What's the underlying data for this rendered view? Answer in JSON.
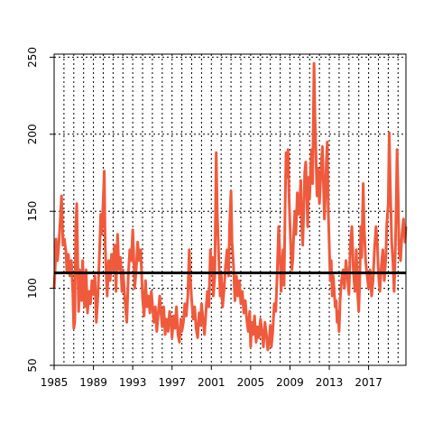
{
  "chart_data": {
    "type": "line",
    "title": "",
    "xlabel": "",
    "ylabel": "",
    "xlim": [
      1985,
      2020.8
    ],
    "ylim": [
      50,
      252
    ],
    "x_ticks": [
      1985,
      1989,
      1993,
      1997,
      2001,
      2005,
      2009,
      2013,
      2017
    ],
    "x_tick_labels": [
      "1985",
      "1989",
      "1993",
      "1997",
      "2001",
      "2005",
      "2009",
      "2013",
      "2017"
    ],
    "y_ticks": [
      50,
      100,
      150,
      200,
      250
    ],
    "y_tick_labels": [
      "50",
      "100",
      "150",
      "200",
      "250"
    ],
    "grid": true,
    "vertical_grid_step_years": 1,
    "series": [
      {
        "color": "#f05a3c",
        "line_width": 3,
        "points": [
          [
            1985.0,
            100
          ],
          [
            1985.1,
            112
          ],
          [
            1985.2,
            132
          ],
          [
            1985.35,
            118
          ],
          [
            1985.5,
            130
          ],
          [
            1985.65,
            148
          ],
          [
            1985.75,
            160
          ],
          [
            1985.9,
            128
          ],
          [
            1986.05,
            132
          ],
          [
            1986.2,
            124
          ],
          [
            1986.3,
            110
          ],
          [
            1986.45,
            122
          ],
          [
            1986.6,
            108
          ],
          [
            1986.75,
            118
          ],
          [
            1986.9,
            98
          ],
          [
            1987.0,
            74
          ],
          [
            1987.1,
            78
          ],
          [
            1987.2,
            140
          ],
          [
            1987.3,
            155
          ],
          [
            1987.4,
            120
          ],
          [
            1987.5,
            85
          ],
          [
            1987.6,
            112
          ],
          [
            1987.7,
            96
          ],
          [
            1987.8,
            92
          ],
          [
            1987.9,
            118
          ],
          [
            1988.0,
            102
          ],
          [
            1988.1,
            88
          ],
          [
            1988.25,
            112
          ],
          [
            1988.4,
            84
          ],
          [
            1988.55,
            98
          ],
          [
            1988.7,
            90
          ],
          [
            1988.85,
            105
          ],
          [
            1989.0,
            96
          ],
          [
            1989.15,
            108
          ],
          [
            1989.3,
            78
          ],
          [
            1989.45,
            95
          ],
          [
            1989.6,
            120
          ],
          [
            1989.75,
            148
          ],
          [
            1989.85,
            135
          ],
          [
            1990.0,
            158
          ],
          [
            1990.1,
            176
          ],
          [
            1990.2,
            128
          ],
          [
            1990.3,
            110
          ],
          [
            1990.4,
            95
          ],
          [
            1990.55,
            118
          ],
          [
            1990.7,
            105
          ],
          [
            1990.85,
            122
          ],
          [
            1991.0,
            112
          ],
          [
            1991.15,
            128
          ],
          [
            1991.3,
            98
          ],
          [
            1991.45,
            135
          ],
          [
            1991.6,
            112
          ],
          [
            1991.75,
            120
          ],
          [
            1991.9,
            98
          ],
          [
            1992.0,
            112
          ],
          [
            1992.15,
            98
          ],
          [
            1992.3,
            85
          ],
          [
            1992.4,
            78
          ],
          [
            1992.55,
            108
          ],
          [
            1992.7,
            125
          ],
          [
            1992.85,
            118
          ],
          [
            1993.0,
            138
          ],
          [
            1993.1,
            122
          ],
          [
            1993.2,
            100
          ],
          [
            1993.35,
            112
          ],
          [
            1993.5,
            130
          ],
          [
            1993.65,
            118
          ],
          [
            1993.8,
            125
          ],
          [
            1993.9,
            110
          ],
          [
            1994.0,
            94
          ],
          [
            1994.15,
            82
          ],
          [
            1994.3,
            105
          ],
          [
            1994.45,
            88
          ],
          [
            1994.6,
            95
          ],
          [
            1994.75,
            84
          ],
          [
            1994.9,
            98
          ],
          [
            1995.0,
            90
          ],
          [
            1995.15,
            78
          ],
          [
            1995.3,
            88
          ],
          [
            1995.45,
            72
          ],
          [
            1995.6,
            84
          ],
          [
            1995.75,
            95
          ],
          [
            1995.9,
            82
          ],
          [
            1996.0,
            75
          ],
          [
            1996.15,
            88
          ],
          [
            1996.3,
            70
          ],
          [
            1996.45,
            80
          ],
          [
            1996.6,
            72
          ],
          [
            1996.75,
            85
          ],
          [
            1996.9,
            78
          ],
          [
            1997.0,
            68
          ],
          [
            1997.15,
            82
          ],
          [
            1997.3,
            74
          ],
          [
            1997.45,
            88
          ],
          [
            1997.6,
            70
          ],
          [
            1997.75,
            65
          ],
          [
            1997.9,
            80
          ],
          [
            1998.0,
            72
          ],
          [
            1998.15,
            78
          ],
          [
            1998.3,
            90
          ],
          [
            1998.45,
            82
          ],
          [
            1998.6,
            95
          ],
          [
            1998.75,
            125
          ],
          [
            1998.85,
            108
          ],
          [
            1999.0,
            92
          ],
          [
            1999.15,
            80
          ],
          [
            1999.3,
            88
          ],
          [
            1999.45,
            74
          ],
          [
            1999.6,
            68
          ],
          [
            1999.75,
            84
          ],
          [
            1999.9,
            76
          ],
          [
            2000.0,
            90
          ],
          [
            2000.15,
            80
          ],
          [
            2000.3,
            70
          ],
          [
            2000.45,
            85
          ],
          [
            2000.6,
            98
          ],
          [
            2000.75,
            88
          ],
          [
            2000.9,
            125
          ],
          [
            2001.0,
            110
          ],
          [
            2001.1,
            120
          ],
          [
            2001.2,
            95
          ],
          [
            2001.35,
            108
          ],
          [
            2001.5,
            188
          ],
          [
            2001.6,
            150
          ],
          [
            2001.75,
            120
          ],
          [
            2001.9,
            95
          ],
          [
            2002.0,
            110
          ],
          [
            2002.15,
            88
          ],
          [
            2002.3,
            100
          ],
          [
            2002.45,
            115
          ],
          [
            2002.6,
            125
          ],
          [
            2002.75,
            108
          ],
          [
            2002.85,
            140
          ],
          [
            2003.0,
            163
          ],
          [
            2003.1,
            130
          ],
          [
            2003.25,
            115
          ],
          [
            2003.4,
            92
          ],
          [
            2003.55,
            108
          ],
          [
            2003.7,
            95
          ],
          [
            2003.85,
            105
          ],
          [
            2004.0,
            90
          ],
          [
            2004.15,
            98
          ],
          [
            2004.3,
            84
          ],
          [
            2004.45,
            92
          ],
          [
            2004.6,
            80
          ],
          [
            2004.75,
            72
          ],
          [
            2004.9,
            85
          ],
          [
            2005.0,
            62
          ],
          [
            2005.1,
            78
          ],
          [
            2005.25,
            70
          ],
          [
            2005.4,
            82
          ],
          [
            2005.55,
            65
          ],
          [
            2005.7,
            75
          ],
          [
            2005.85,
            68
          ],
          [
            2006.0,
            80
          ],
          [
            2006.15,
            72
          ],
          [
            2006.3,
            62
          ],
          [
            2006.45,
            78
          ],
          [
            2006.6,
            70
          ],
          [
            2006.75,
            60
          ],
          [
            2006.9,
            68
          ],
          [
            2007.0,
            76
          ],
          [
            2007.1,
            62
          ],
          [
            2007.25,
            72
          ],
          [
            2007.4,
            90
          ],
          [
            2007.55,
            85
          ],
          [
            2007.7,
            110
          ],
          [
            2007.85,
            140
          ],
          [
            2008.0,
            118
          ],
          [
            2008.1,
            98
          ],
          [
            2008.2,
            110
          ],
          [
            2008.3,
            125
          ],
          [
            2008.4,
            102
          ],
          [
            2008.5,
            150
          ],
          [
            2008.6,
            188
          ],
          [
            2008.7,
            172
          ],
          [
            2008.8,
            190
          ],
          [
            2008.9,
            160
          ],
          [
            2009.0,
            140
          ],
          [
            2009.1,
            125
          ],
          [
            2009.2,
            112
          ],
          [
            2009.3,
            120
          ],
          [
            2009.4,
            138
          ],
          [
            2009.5,
            150
          ],
          [
            2009.6,
            135
          ],
          [
            2009.75,
            162
          ],
          [
            2009.9,
            148
          ],
          [
            2010.0,
            155
          ],
          [
            2010.1,
            170
          ],
          [
            2010.2,
            140
          ],
          [
            2010.3,
            128
          ],
          [
            2010.4,
            150
          ],
          [
            2010.5,
            175
          ],
          [
            2010.6,
            182
          ],
          [
            2010.7,
            162
          ],
          [
            2010.8,
            140
          ],
          [
            2010.9,
            172
          ],
          [
            2011.0,
            158
          ],
          [
            2011.1,
            178
          ],
          [
            2011.2,
            190
          ],
          [
            2011.3,
            168
          ],
          [
            2011.45,
            246
          ],
          [
            2011.55,
            210
          ],
          [
            2011.65,
            185
          ],
          [
            2011.75,
            160
          ],
          [
            2011.85,
            178
          ],
          [
            2012.0,
            155
          ],
          [
            2012.1,
            168
          ],
          [
            2012.2,
            182
          ],
          [
            2012.3,
            192
          ],
          [
            2012.4,
            170
          ],
          [
            2012.5,
            145
          ],
          [
            2012.6,
            160
          ],
          [
            2012.7,
            182
          ],
          [
            2012.8,
            195
          ],
          [
            2012.9,
            150
          ],
          [
            2013.0,
            128
          ],
          [
            2013.1,
            105
          ],
          [
            2013.2,
            118
          ],
          [
            2013.3,
            95
          ],
          [
            2013.4,
            108
          ],
          [
            2013.5,
            98
          ],
          [
            2013.6,
            88
          ],
          [
            2013.7,
            92
          ],
          [
            2013.8,
            78
          ],
          [
            2013.9,
            85
          ],
          [
            2014.0,
            72
          ],
          [
            2014.1,
            92
          ],
          [
            2014.25,
            105
          ],
          [
            2014.4,
            112
          ],
          [
            2014.55,
            100
          ],
          [
            2014.7,
            118
          ],
          [
            2014.85,
            108
          ],
          [
            2015.0,
            96
          ],
          [
            2015.15,
            128
          ],
          [
            2015.3,
            140
          ],
          [
            2015.45,
            112
          ],
          [
            2015.6,
            98
          ],
          [
            2015.75,
            125
          ],
          [
            2015.9,
            95
          ],
          [
            2016.0,
            85
          ],
          [
            2016.1,
            105
          ],
          [
            2016.2,
            140
          ],
          [
            2016.3,
            120
          ],
          [
            2016.45,
            168
          ],
          [
            2016.55,
            140
          ],
          [
            2016.7,
            118
          ],
          [
            2016.85,
            108
          ],
          [
            2017.0,
            100
          ],
          [
            2017.15,
            112
          ],
          [
            2017.3,
            95
          ],
          [
            2017.45,
            105
          ],
          [
            2017.6,
            125
          ],
          [
            2017.75,
            140
          ],
          [
            2017.9,
            128
          ],
          [
            2018.0,
            110
          ],
          [
            2018.15,
            98
          ],
          [
            2018.3,
            115
          ],
          [
            2018.45,
            125
          ],
          [
            2018.6,
            105
          ],
          [
            2018.75,
            120
          ],
          [
            2018.85,
            142
          ],
          [
            2019.0,
            155
          ],
          [
            2019.1,
            201
          ],
          [
            2019.2,
            168
          ],
          [
            2019.35,
            130
          ],
          [
            2019.5,
            115
          ],
          [
            2019.6,
            98
          ],
          [
            2019.7,
            120
          ],
          [
            2019.8,
            150
          ],
          [
            2019.9,
            190
          ],
          [
            2020.0,
            162
          ],
          [
            2020.1,
            125
          ],
          [
            2020.25,
            118
          ],
          [
            2020.4,
            135
          ],
          [
            2020.55,
            145
          ],
          [
            2020.7,
            130
          ],
          [
            2020.8,
            140
          ]
        ]
      }
    ],
    "reference_line": {
      "y": 110,
      "color": "#000000",
      "line_width": 3
    }
  }
}
